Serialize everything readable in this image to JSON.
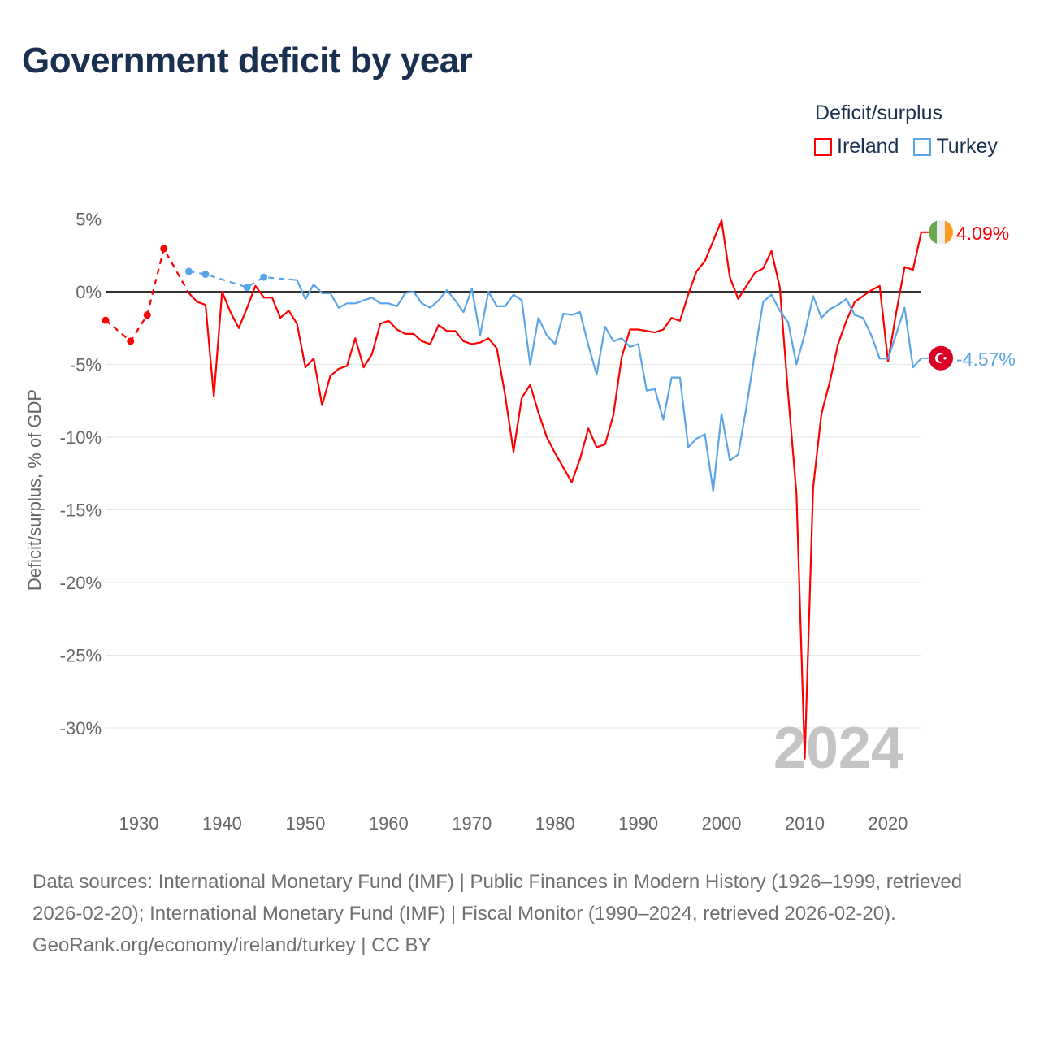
{
  "title": "Government deficit by year",
  "legend": {
    "title": "Deficit/surplus",
    "items": [
      {
        "label": "Ireland",
        "color": "#ff0000"
      },
      {
        "label": "Turkey",
        "color": "#5aa5e8"
      }
    ]
  },
  "chart_data": {
    "type": "line",
    "title": "Government deficit by year",
    "ylabel": "Deficit/surplus, % of GDP",
    "xlabel": "",
    "ylim": [
      -35,
      5
    ],
    "xlim": [
      1926,
      2024
    ],
    "yticks": [
      5,
      0,
      -5,
      -10,
      -15,
      -20,
      -25,
      -30
    ],
    "ytick_labels": [
      "5%",
      "0%",
      "-5%",
      "-10%",
      "-15%",
      "-20%",
      "-25%",
      "-30%"
    ],
    "xticks": [
      1930,
      1940,
      1950,
      1960,
      1970,
      1980,
      1990,
      2000,
      2010,
      2020
    ],
    "year_label": "2024",
    "series": [
      {
        "name": "Ireland",
        "color": "#ff0000",
        "end_label": "4.09%",
        "dashed_points": [
          [
            1926,
            -1.96
          ],
          [
            1929,
            -3.4
          ],
          [
            1931,
            -1.6
          ],
          [
            1933,
            2.96
          ],
          [
            1936,
            -0.1
          ]
        ],
        "points": [
          [
            1936,
            -0.1
          ],
          [
            1937,
            -0.7
          ],
          [
            1938,
            -0.9
          ],
          [
            1939,
            -7.2
          ],
          [
            1940,
            0
          ],
          [
            1941,
            -1.4
          ],
          [
            1942,
            -2.5
          ],
          [
            1943,
            -1.1
          ],
          [
            1944,
            0.4
          ],
          [
            1945,
            -0.4
          ],
          [
            1946,
            -0.4
          ],
          [
            1947,
            -1.8
          ],
          [
            1948,
            -1.3
          ],
          [
            1949,
            -2.2
          ],
          [
            1950,
            -5.2
          ],
          [
            1951,
            -4.6
          ],
          [
            1952,
            -7.8
          ],
          [
            1953,
            -5.8
          ],
          [
            1954,
            -5.3
          ],
          [
            1955,
            -5.1
          ],
          [
            1956,
            -3.2
          ],
          [
            1957,
            -5.2
          ],
          [
            1958,
            -4.3
          ],
          [
            1959,
            -2.2
          ],
          [
            1960,
            -2.0
          ],
          [
            1961,
            -2.6
          ],
          [
            1962,
            -2.9
          ],
          [
            1963,
            -2.9
          ],
          [
            1964,
            -3.4
          ],
          [
            1965,
            -3.6
          ],
          [
            1966,
            -2.3
          ],
          [
            1967,
            -2.7
          ],
          [
            1968,
            -2.7
          ],
          [
            1969,
            -3.4
          ],
          [
            1970,
            -3.6
          ],
          [
            1971,
            -3.5
          ],
          [
            1972,
            -3.2
          ],
          [
            1973,
            -3.9
          ],
          [
            1974,
            -7.1
          ],
          [
            1975,
            -11.0
          ],
          [
            1976,
            -7.3
          ],
          [
            1977,
            -6.4
          ],
          [
            1978,
            -8.3
          ],
          [
            1979,
            -10.0
          ],
          [
            1980,
            -11.1
          ],
          [
            1981,
            -12.1
          ],
          [
            1982,
            -13.1
          ],
          [
            1983,
            -11.5
          ],
          [
            1984,
            -9.4
          ],
          [
            1985,
            -10.7
          ],
          [
            1986,
            -10.5
          ],
          [
            1987,
            -8.5
          ],
          [
            1988,
            -4.5
          ],
          [
            1989,
            -2.6
          ],
          [
            1990,
            -2.6
          ],
          [
            1991,
            -2.7
          ],
          [
            1992,
            -2.8
          ],
          [
            1993,
            -2.6
          ],
          [
            1994,
            -1.8
          ],
          [
            1995,
            -2.0
          ],
          [
            1996,
            -0.2
          ],
          [
            1997,
            1.4
          ],
          [
            1998,
            2.1
          ],
          [
            1999,
            3.5
          ],
          [
            2000,
            4.9
          ],
          [
            2001,
            1.0
          ],
          [
            2002,
            -0.5
          ],
          [
            2003,
            0.4
          ],
          [
            2004,
            1.3
          ],
          [
            2005,
            1.6
          ],
          [
            2006,
            2.8
          ],
          [
            2007,
            0.3
          ],
          [
            2008,
            -7.0
          ],
          [
            2009,
            -13.9
          ],
          [
            2010,
            -32.1
          ],
          [
            2011,
            -13.5
          ],
          [
            2012,
            -8.4
          ],
          [
            2013,
            -6.2
          ],
          [
            2014,
            -3.6
          ],
          [
            2015,
            -2.0
          ],
          [
            2016,
            -0.7
          ],
          [
            2017,
            -0.3
          ],
          [
            2018,
            0.1
          ],
          [
            2019,
            0.4
          ],
          [
            2020,
            -4.8
          ],
          [
            2021,
            -1.4
          ],
          [
            2022,
            1.7
          ],
          [
            2023,
            1.5
          ],
          [
            2024,
            4.09
          ]
        ]
      },
      {
        "name": "Turkey",
        "color": "#5aa5e8",
        "end_label": "-4.57%",
        "dashed_points": [
          [
            1936,
            1.4
          ],
          [
            1938,
            1.2
          ],
          [
            1943,
            0.3
          ],
          [
            1945,
            1.0
          ],
          [
            1948,
            0.85
          ]
        ],
        "points": [
          [
            1948,
            0.85
          ],
          [
            1949,
            0.8
          ],
          [
            1950,
            -0.5
          ],
          [
            1951,
            0.5
          ],
          [
            1952,
            -0.1
          ],
          [
            1953,
            -0.1
          ],
          [
            1954,
            -1.1
          ],
          [
            1955,
            -0.8
          ],
          [
            1956,
            -0.8
          ],
          [
            1957,
            -0.6
          ],
          [
            1958,
            -0.4
          ],
          [
            1959,
            -0.8
          ],
          [
            1960,
            -0.8
          ],
          [
            1961,
            -1.0
          ],
          [
            1962,
            -0.1
          ],
          [
            1963,
            0.0
          ],
          [
            1964,
            -0.8
          ],
          [
            1965,
            -1.1
          ],
          [
            1966,
            -0.6
          ],
          [
            1967,
            0.1
          ],
          [
            1968,
            -0.6
          ],
          [
            1969,
            -1.4
          ],
          [
            1970,
            0.2
          ],
          [
            1971,
            -3.0
          ],
          [
            1972,
            0.0
          ],
          [
            1973,
            -1.0
          ],
          [
            1974,
            -1.0
          ],
          [
            1975,
            -0.2
          ],
          [
            1976,
            -0.6
          ],
          [
            1977,
            -5.0
          ],
          [
            1978,
            -1.8
          ],
          [
            1979,
            -3.0
          ],
          [
            1980,
            -3.6
          ],
          [
            1981,
            -1.5
          ],
          [
            1982,
            -1.6
          ],
          [
            1983,
            -1.4
          ],
          [
            1984,
            -3.7
          ],
          [
            1985,
            -5.7
          ],
          [
            1986,
            -2.4
          ],
          [
            1987,
            -3.4
          ],
          [
            1988,
            -3.2
          ],
          [
            1989,
            -3.8
          ],
          [
            1990,
            -3.6
          ],
          [
            1991,
            -6.8
          ],
          [
            1992,
            -6.7
          ],
          [
            1993,
            -8.8
          ],
          [
            1994,
            -5.9
          ],
          [
            1995,
            -5.9
          ],
          [
            1996,
            -10.7
          ],
          [
            1997,
            -10.1
          ],
          [
            1998,
            -9.8
          ],
          [
            1999,
            -13.7
          ],
          [
            2000,
            -8.4
          ],
          [
            2001,
            -11.6
          ],
          [
            2002,
            -11.2
          ],
          [
            2003,
            -7.9
          ],
          [
            2004,
            -4.2
          ],
          [
            2005,
            -0.7
          ],
          [
            2006,
            -0.2
          ],
          [
            2007,
            -1.3
          ],
          [
            2008,
            -2.1
          ],
          [
            2009,
            -5.0
          ],
          [
            2010,
            -2.9
          ],
          [
            2011,
            -0.3
          ],
          [
            2012,
            -1.8
          ],
          [
            2013,
            -1.2
          ],
          [
            2014,
            -0.9
          ],
          [
            2015,
            -0.5
          ],
          [
            2016,
            -1.6
          ],
          [
            2017,
            -1.8
          ],
          [
            2018,
            -3.0
          ],
          [
            2019,
            -4.6
          ],
          [
            2020,
            -4.6
          ],
          [
            2021,
            -2.9
          ],
          [
            2022,
            -1.1
          ],
          [
            2023,
            -5.2
          ],
          [
            2024,
            -4.57
          ]
        ]
      }
    ]
  },
  "footer": {
    "sources": "Data sources: International Monetary Fund (IMF) | Public Finances in Modern History (1926–1999, retrieved 2026-02-20); International Monetary Fund (IMF) | Fiscal Monitor (1990–2024, retrieved 2026-02-20).",
    "credit": "GeoRank.org/economy/ireland/turkey | CC BY"
  }
}
